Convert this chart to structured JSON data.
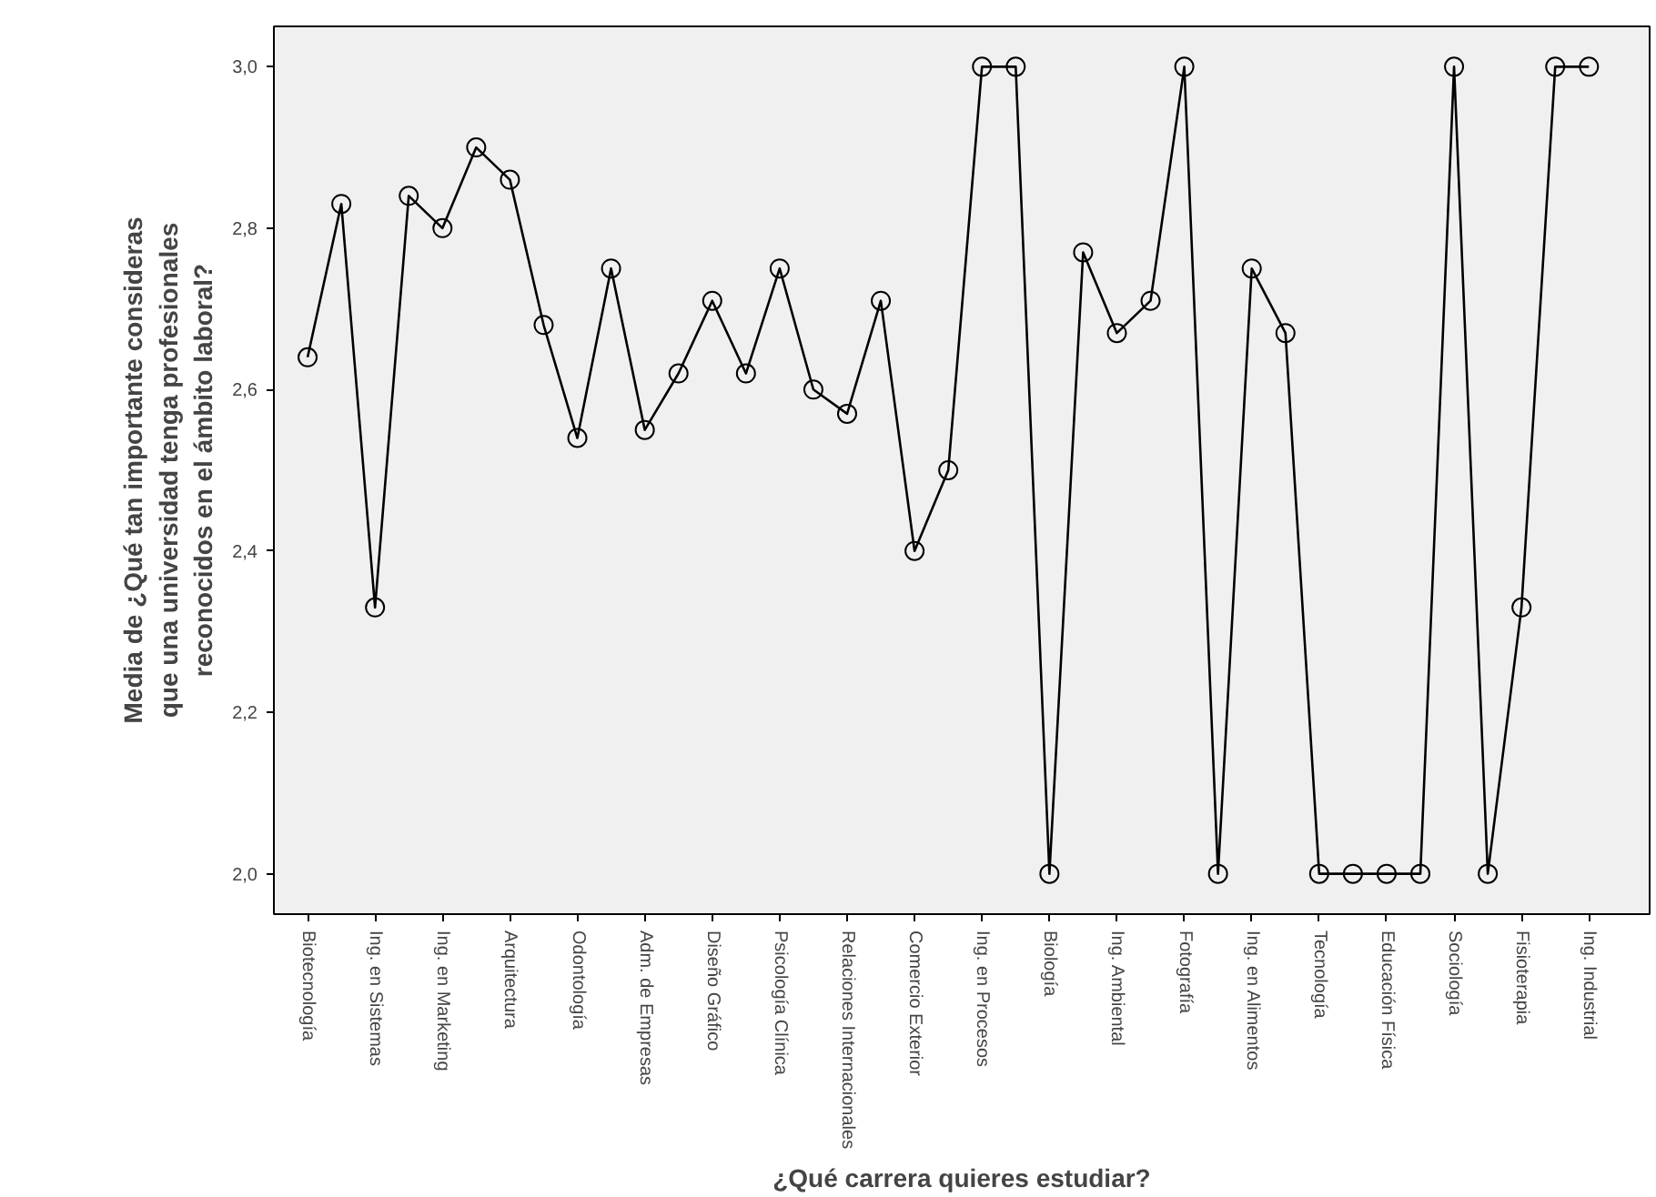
{
  "chart_data": {
    "type": "line",
    "xlabel": "¿Qué carrera quieres estudiar?",
    "ylabel": "Media de ¿Qué tan importante consideras\nque una universidad tenga profesionales\nreconocidos en el ámbito laboral?",
    "categories": [
      "Biotecnología",
      null,
      "Ing. en Sistemas",
      null,
      "Ing. en Marketing",
      null,
      "Arquitectura",
      null,
      "Odontología",
      null,
      "Adm. de Empresas",
      null,
      "Diseño Gráfico",
      null,
      "Psicología Clínica",
      null,
      "Relaciones Internacionales",
      null,
      "Comercio Exterior",
      null,
      "Ing. en Procesos",
      null,
      "Biología",
      null,
      "Ing. Ambiental",
      null,
      "Fotografía",
      null,
      "Ing. en Alimentos",
      null,
      "Tecnología",
      null,
      "Educación Física",
      null,
      "Sociología",
      null,
      "Fisioterapia",
      null,
      "Ing. Industrial"
    ],
    "series": [
      {
        "color": "#000000",
        "values": [
          2.64,
          2.83,
          2.33,
          2.84,
          2.8,
          2.9,
          2.86,
          2.68,
          2.54,
          2.75,
          2.55,
          2.62,
          2.71,
          2.62,
          2.75,
          2.6,
          2.57,
          2.71,
          2.4,
          2.5,
          3.0,
          3.0,
          2.0,
          2.77,
          2.67,
          2.71,
          3.0,
          2.0,
          2.75,
          2.67,
          2.0,
          2.0,
          2.0,
          2.0,
          3.0,
          2.0,
          2.33,
          3.0,
          3.0
        ]
      }
    ],
    "ylim": [
      1.95,
      3.05
    ],
    "yticks": [
      {
        "value": 2.0,
        "label": "2,0"
      },
      {
        "value": 2.2,
        "label": "2,2"
      },
      {
        "value": 2.4,
        "label": "2,4"
      },
      {
        "value": 2.6,
        "label": "2,6"
      },
      {
        "value": 2.8,
        "label": "2,8"
      },
      {
        "value": 3.0,
        "label": "3,0"
      }
    ],
    "grid": false,
    "marker": "circle",
    "line_style": "solid"
  }
}
